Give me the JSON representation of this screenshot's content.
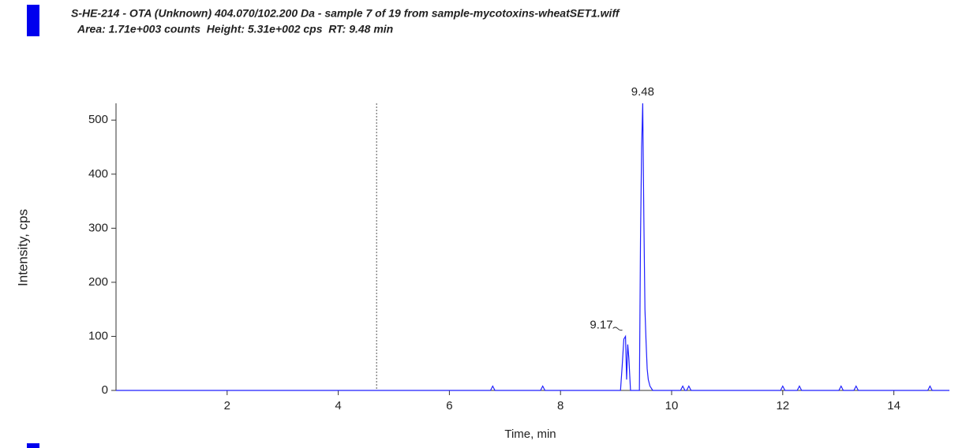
{
  "chart_data": {
    "type": "line",
    "header": "S-HE-214 - OTA (Unknown) 404.070/102.200 Da - sample 7 of 19 from sample-mycotoxins-wheatSET1.wiff",
    "subheader": "Area: 1.71e+003 counts  Height: 5.31e+002 cps  RT: 9.48 min",
    "xlabel": "Time, min",
    "ylabel": "Intensity, cps",
    "xlim": [
      0,
      15
    ],
    "ylim": [
      0,
      531
    ],
    "xticks": [
      2,
      4,
      6,
      8,
      10,
      12,
      14
    ],
    "yticks": [
      0,
      100,
      200,
      300,
      400,
      500
    ],
    "marker_x": 4.69,
    "series": [
      {
        "color": "#1f1fff",
        "x": [
          0,
          6.74,
          6.78,
          6.82,
          7.64,
          7.68,
          7.72,
          9.08,
          9.11,
          9.14,
          9.17,
          9.19,
          9.21,
          9.23,
          9.26,
          9.42,
          9.44,
          9.46,
          9.48,
          9.5,
          9.52,
          9.54,
          9.56,
          9.58,
          9.61,
          9.66,
          10.16,
          10.2,
          10.24,
          10.27,
          10.31,
          10.35,
          11.96,
          12.0,
          12.04,
          12.26,
          12.3,
          12.34,
          13.01,
          13.05,
          13.09,
          13.28,
          13.32,
          13.36,
          14.61,
          14.65,
          14.69,
          15
        ],
        "values": [
          0,
          0,
          8,
          0,
          0,
          8,
          0,
          0,
          45,
          95,
          100,
          20,
          85,
          60,
          0,
          0,
          280,
          450,
          531,
          320,
          150,
          90,
          40,
          20,
          8,
          0,
          0,
          8,
          0,
          0,
          8,
          0,
          0,
          8,
          0,
          0,
          8,
          0,
          0,
          8,
          0,
          0,
          8,
          0,
          0,
          8,
          0,
          0
        ]
      }
    ],
    "annotations": [
      {
        "text": "9.48",
        "x": 9.48,
        "y": 531
      },
      {
        "text": "9.17",
        "x": 9.17,
        "y": 100
      }
    ]
  }
}
